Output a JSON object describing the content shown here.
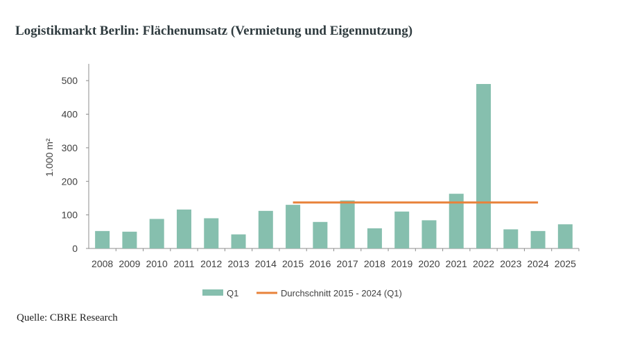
{
  "title": "Logistikmarkt Berlin: Flächenumsatz (Vermietung und Eigennutzung)",
  "source": "Quelle: CBRE Research",
  "colors": {
    "bar": "#86bfae",
    "average": "#e8823a",
    "axis": "#8c8c8c",
    "text": "#404040"
  },
  "chart_data": {
    "type": "bar",
    "ylabel": "1.000 m²",
    "ylim": [
      0,
      550
    ],
    "yticks": [
      0,
      100,
      200,
      300,
      400,
      500
    ],
    "grid": false,
    "legend_position": "bottom",
    "categories": [
      "2008",
      "2009",
      "2010",
      "2011",
      "2012",
      "2013",
      "2014",
      "2015",
      "2016",
      "2017",
      "2018",
      "2019",
      "2020",
      "2021",
      "2022",
      "2023",
      "2024",
      "2025"
    ],
    "series": [
      {
        "name": "Q1",
        "type": "bar",
        "values": [
          52,
          50,
          88,
          116,
          90,
          42,
          112,
          130,
          79,
          143,
          60,
          110,
          84,
          163,
          490,
          57,
          52,
          72
        ]
      },
      {
        "name": "Durchschnitt 2015 - 2024 (Q1)",
        "type": "line",
        "from": "2015",
        "to": "2024",
        "value": 137
      }
    ]
  }
}
